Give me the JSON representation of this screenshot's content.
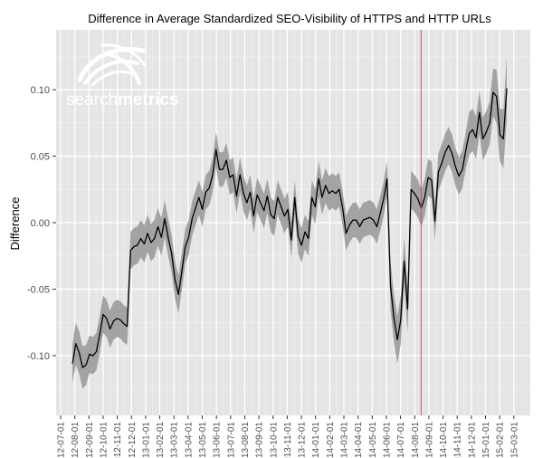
{
  "chart_data": {
    "type": "line",
    "title": "Difference in Average Standardized SEO-Visibility of HTTPS and HTTP URLs",
    "xlabel": "",
    "ylabel": "Difference",
    "ylim": [
      -0.145,
      0.145
    ],
    "yticks": [
      0.1,
      0.05,
      0.0,
      -0.05,
      -0.1
    ],
    "ytick_labels": [
      "0.10",
      "0.05",
      "0.00",
      "-0.05",
      "-0.10"
    ],
    "xtick_labels": [
      "2012-07-01",
      "2012-08-01",
      "2012-09-01",
      "2012-10-01",
      "2012-11-01",
      "2012-12-01",
      "2013-01-01",
      "2013-02-01",
      "2013-03-01",
      "2013-04-01",
      "2013-05-01",
      "2013-06-01",
      "2013-07-01",
      "2013-08-01",
      "2013-09-01",
      "2013-10-01",
      "2013-11-01",
      "2013-12-01",
      "2014-01-01",
      "2014-02-01",
      "2014-03-01",
      "2014-04-01",
      "2014-05-01",
      "2014-06-01",
      "2014-07-01",
      "2014-08-01",
      "2014-09-01",
      "2014-10-01",
      "2014-11-01",
      "2014-12-01",
      "2015-01-01",
      "2015-02-01",
      "2015-03-01"
    ],
    "grid": true,
    "band_color": "#a3a3a3",
    "line_color": "#000000",
    "panel_color": "#e5e5e5",
    "marker_line": {
      "x": "2014-08-15",
      "color": "#e8474f"
    },
    "series": [
      {
        "values": [
          -0.106,
          -0.091,
          -0.098,
          -0.109,
          -0.107,
          -0.099,
          -0.1,
          -0.097,
          -0.084,
          -0.069,
          -0.072,
          -0.08,
          -0.074,
          -0.072,
          -0.073,
          -0.076,
          -0.078,
          -0.021,
          -0.018,
          -0.017,
          -0.012,
          -0.016,
          -0.008,
          -0.015,
          -0.012,
          -0.003,
          -0.011,
          0.003,
          -0.011,
          -0.023,
          -0.043,
          -0.054,
          -0.037,
          -0.018,
          -0.011,
          0.003,
          0.011,
          0.019,
          0.01,
          0.023,
          0.026,
          0.036,
          0.055,
          0.04,
          0.04,
          0.047,
          0.034,
          0.036,
          0.02,
          0.036,
          0.022,
          0.015,
          0.023,
          0.005,
          0.021,
          0.015,
          0.009,
          0.02,
          0.006,
          0.003,
          0.019,
          0.012,
          0.005,
          0.01,
          -0.013,
          0.019,
          -0.01,
          -0.017,
          -0.007,
          -0.012,
          0.019,
          0.012,
          0.033,
          0.019,
          0.028,
          0.022,
          0.024,
          0.022,
          0.025,
          0.011,
          -0.008,
          -0.002,
          0.002,
          0.002,
          -0.003,
          0.002,
          0.003,
          0.004,
          0.002,
          -0.003,
          0.007,
          0.018,
          0.033,
          -0.047,
          -0.072,
          -0.088,
          -0.073,
          -0.029,
          -0.065,
          0.025,
          0.022,
          0.018,
          0.011,
          0.019,
          0.034,
          0.032,
          0.001,
          0.038,
          0.045,
          0.053,
          0.058,
          0.052,
          0.042,
          0.035,
          0.04,
          0.054,
          0.067,
          0.07,
          0.064,
          0.083,
          0.063,
          0.068,
          0.075,
          0.098,
          0.095,
          0.066,
          0.063,
          0.101
        ],
        "band_width": [
          0.014,
          0.016,
          0.016,
          0.016,
          0.015,
          0.014,
          0.014,
          0.014,
          0.014,
          0.014,
          0.014,
          0.014,
          0.014,
          0.014,
          0.014,
          0.014,
          0.014,
          0.014,
          0.014,
          0.014,
          0.014,
          0.014,
          0.014,
          0.014,
          0.014,
          0.014,
          0.014,
          0.014,
          0.014,
          0.014,
          0.014,
          0.014,
          0.014,
          0.013,
          0.013,
          0.013,
          0.013,
          0.013,
          0.013,
          0.013,
          0.013,
          0.013,
          0.013,
          0.013,
          0.013,
          0.013,
          0.013,
          0.013,
          0.013,
          0.013,
          0.013,
          0.013,
          0.013,
          0.013,
          0.013,
          0.013,
          0.013,
          0.013,
          0.013,
          0.013,
          0.013,
          0.013,
          0.013,
          0.013,
          0.013,
          0.013,
          0.013,
          0.013,
          0.013,
          0.013,
          0.013,
          0.013,
          0.013,
          0.013,
          0.013,
          0.013,
          0.013,
          0.013,
          0.013,
          0.013,
          0.013,
          0.013,
          0.013,
          0.013,
          0.013,
          0.013,
          0.013,
          0.013,
          0.013,
          0.013,
          0.013,
          0.013,
          0.013,
          0.018,
          0.018,
          0.018,
          0.018,
          0.018,
          0.018,
          0.014,
          0.014,
          0.014,
          0.014,
          0.014,
          0.014,
          0.014,
          0.014,
          0.014,
          0.014,
          0.014,
          0.014,
          0.014,
          0.014,
          0.014,
          0.014,
          0.014,
          0.016,
          0.016,
          0.016,
          0.016,
          0.016,
          0.016,
          0.016,
          0.018,
          0.02,
          0.02,
          0.022,
          0.024
        ]
      }
    ]
  },
  "logo": {
    "text_light": "search",
    "text_bold": "metrics",
    "icon": "searchmetrics-swoosh-logo"
  }
}
